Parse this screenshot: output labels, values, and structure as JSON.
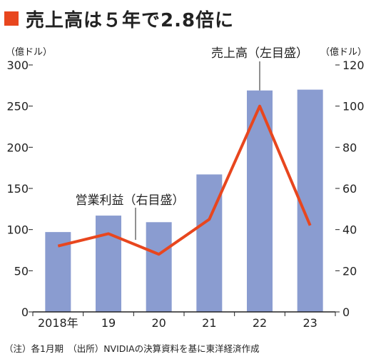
{
  "title": "売上高は５年で2.8倍に",
  "note": "（注）各1月期　（出所）NVIDIAの決算資料を基に東洋経済作成",
  "colors": {
    "accent": "#e8461e",
    "bar": "#8a9cd0",
    "line": "#e8461e",
    "axis": "#222222"
  },
  "chart_data": {
    "type": "bar+line",
    "categories": [
      "2018年",
      "19",
      "20",
      "21",
      "22",
      "23"
    ],
    "series": [
      {
        "name": "売上高（左目盛）",
        "type": "bar",
        "axis": "left",
        "values": [
          97,
          117,
          109,
          167,
          269,
          270
        ]
      },
      {
        "name": "営業利益（右目盛）",
        "type": "line",
        "axis": "right",
        "values": [
          32,
          38,
          28,
          45,
          100,
          42
        ]
      }
    ],
    "left_axis": {
      "unit": "（億ドル）",
      "ylim": [
        0,
        300
      ],
      "ticks": [
        0,
        50,
        100,
        150,
        200,
        250,
        300
      ]
    },
    "right_axis": {
      "unit": "（億ドル）",
      "ylim": [
        0,
        120
      ],
      "ticks": [
        0,
        20,
        40,
        60,
        80,
        100,
        120
      ]
    },
    "annotations": {
      "bar_label": "売上高（左目盛）",
      "line_label": "営業利益（右目盛）"
    },
    "grid": false
  }
}
